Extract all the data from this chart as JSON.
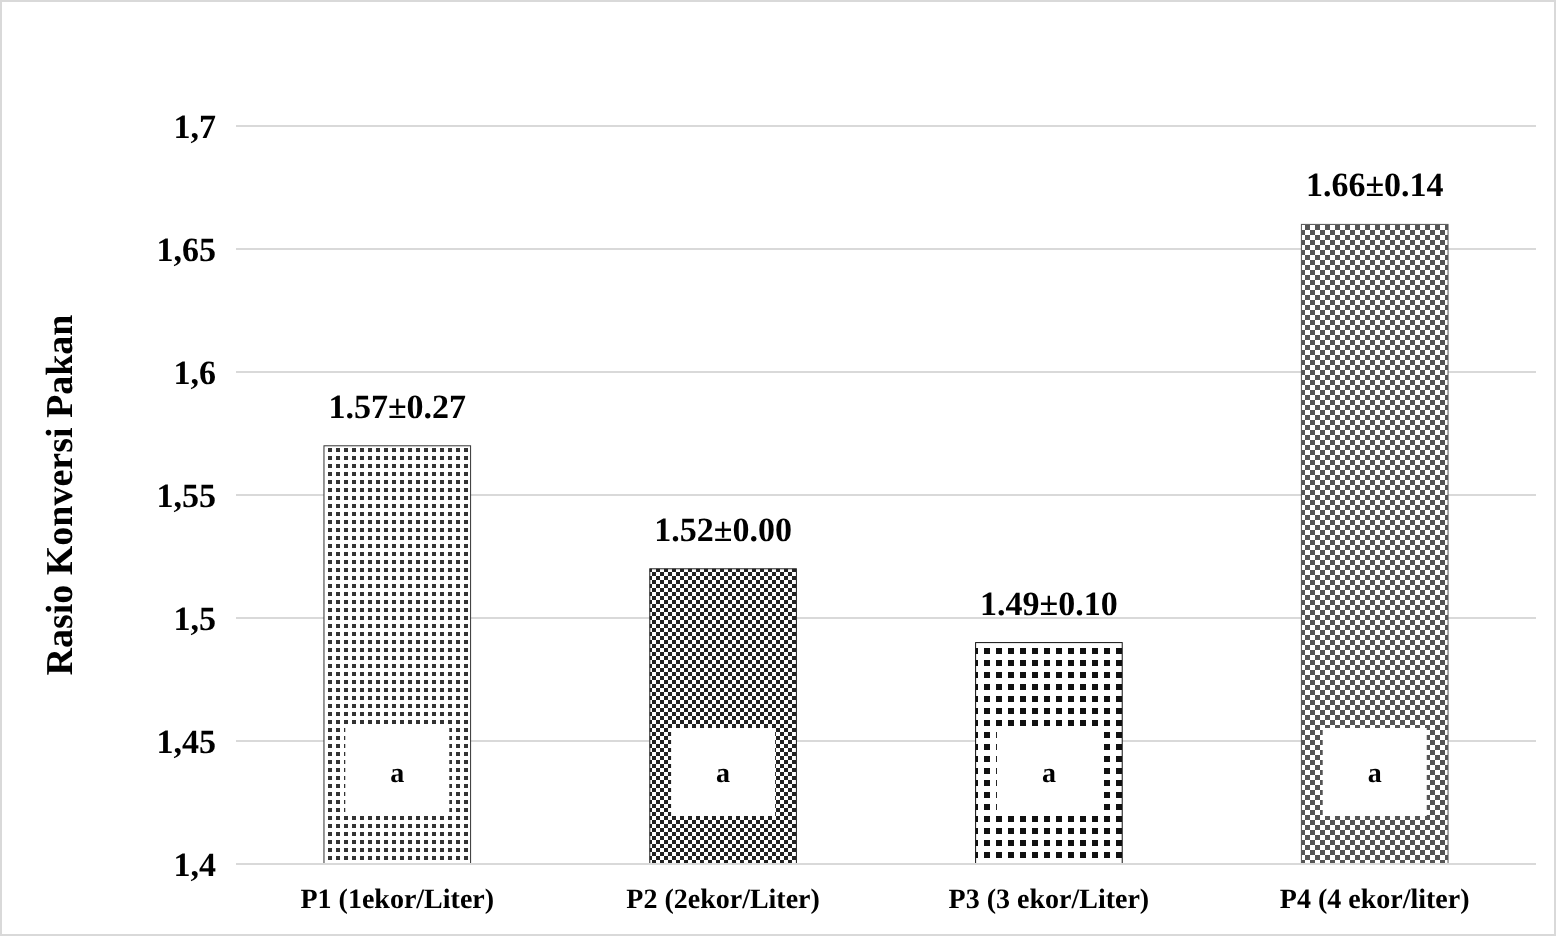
{
  "chart_data": {
    "type": "bar",
    "ylabel": "Rasio Konversi Pakan",
    "categories": [
      "P1 (1ekor/Liter)",
      "P2 (2ekor/Liter)",
      "P3 (3 ekor/Liter)",
      "P4 (4 ekor/liter)"
    ],
    "values": [
      1.57,
      1.52,
      1.49,
      1.66
    ],
    "value_labels": [
      "1.57±0.27",
      "1.52±0.00",
      "1.49±0.10",
      "1.66±0.14"
    ],
    "colors": [
      "#333333",
      "#222222",
      "#111111",
      "#555555"
    ],
    "ylim": [
      1.4,
      1.7
    ],
    "yticks": [
      {
        "value": 1.4,
        "label": "1,4"
      },
      {
        "value": 1.45,
        "label": "1,45"
      },
      {
        "value": 1.5,
        "label": "1,5"
      },
      {
        "value": 1.55,
        "label": "1,55"
      },
      {
        "value": 1.6,
        "label": "1,6"
      },
      {
        "value": 1.65,
        "label": "1,65"
      },
      {
        "value": 1.7,
        "label": "1,7"
      }
    ],
    "grid": "y",
    "annotations": [
      "a",
      "a",
      "a",
      "a"
    ]
  }
}
